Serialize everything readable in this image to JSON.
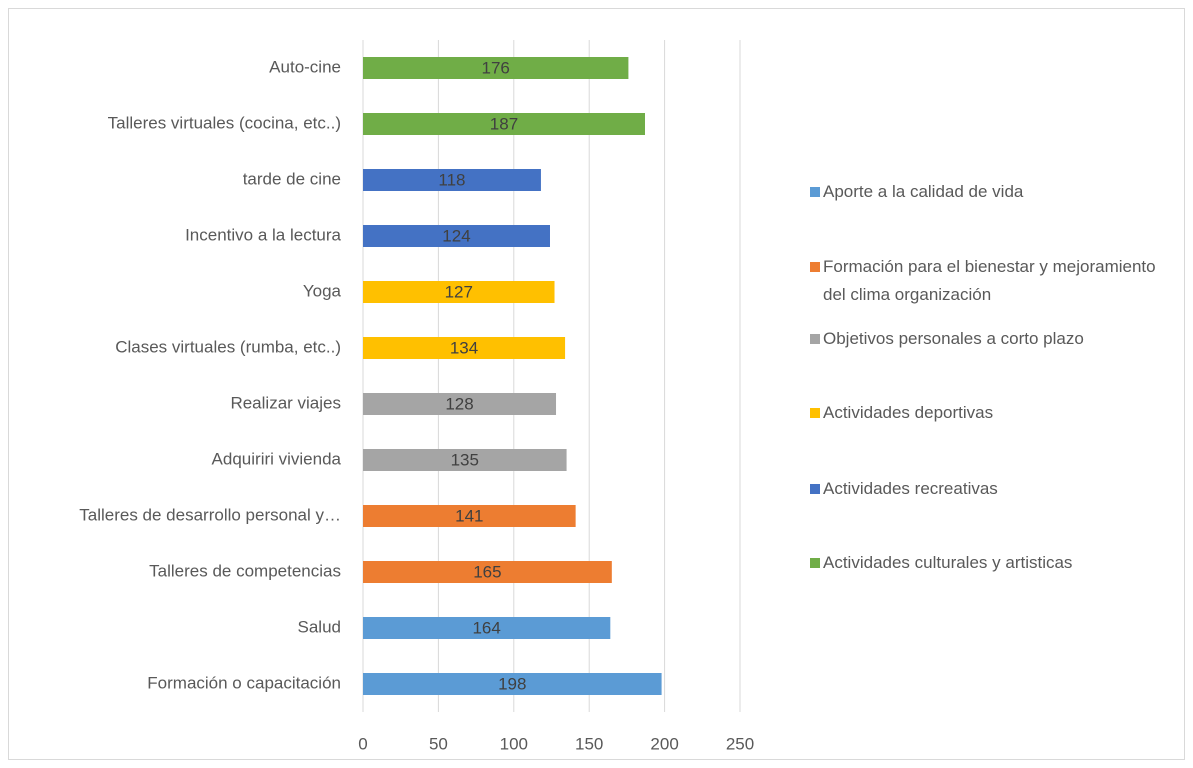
{
  "chart_data": {
    "type": "bar",
    "orientation": "horizontal",
    "categories": [
      "Formación o capacitación",
      "Salud",
      "Talleres de competencias",
      "Talleres de desarrollo personal y…",
      "Adquiriri vivienda",
      "Realizar viajes",
      "Clases virtuales (rumba, etc..)",
      "Yoga",
      "Incentivo a la lectura",
      "tarde de cine",
      "Talleres virtuales (cocina, etc..)",
      "Auto-cine"
    ],
    "series": [
      {
        "name": "Aporte a la calidad de vida",
        "color": "#5b9bd5",
        "values": [
          198,
          164,
          null,
          null,
          null,
          null,
          null,
          null,
          null,
          null,
          null,
          null
        ]
      },
      {
        "name": "Formación para el bienestar y mejoramiento del clima organización",
        "color": "#ed7d31",
        "values": [
          null,
          null,
          165,
          141,
          null,
          null,
          null,
          null,
          null,
          null,
          null,
          null
        ]
      },
      {
        "name": "Objetivos personales a corto plazo",
        "color": "#a5a5a5",
        "values": [
          null,
          null,
          null,
          null,
          135,
          128,
          null,
          null,
          null,
          null,
          null,
          null
        ]
      },
      {
        "name": "Actividades deportivas",
        "color": "#ffc000",
        "values": [
          null,
          null,
          null,
          null,
          null,
          null,
          134,
          127,
          null,
          null,
          null,
          null
        ]
      },
      {
        "name": "Actividades recreativas",
        "color": "#4472c4",
        "values": [
          null,
          null,
          null,
          null,
          null,
          null,
          null,
          null,
          124,
          118,
          null,
          null
        ]
      },
      {
        "name": "Actividades culturales y artisticas",
        "color": "#70ad47",
        "values": [
          null,
          null,
          null,
          null,
          null,
          null,
          null,
          null,
          null,
          null,
          187,
          176
        ]
      }
    ],
    "xlim": [
      0,
      250
    ],
    "xticks": [
      0,
      50,
      100,
      150,
      200,
      250
    ],
    "grid": true,
    "legend": "right"
  }
}
